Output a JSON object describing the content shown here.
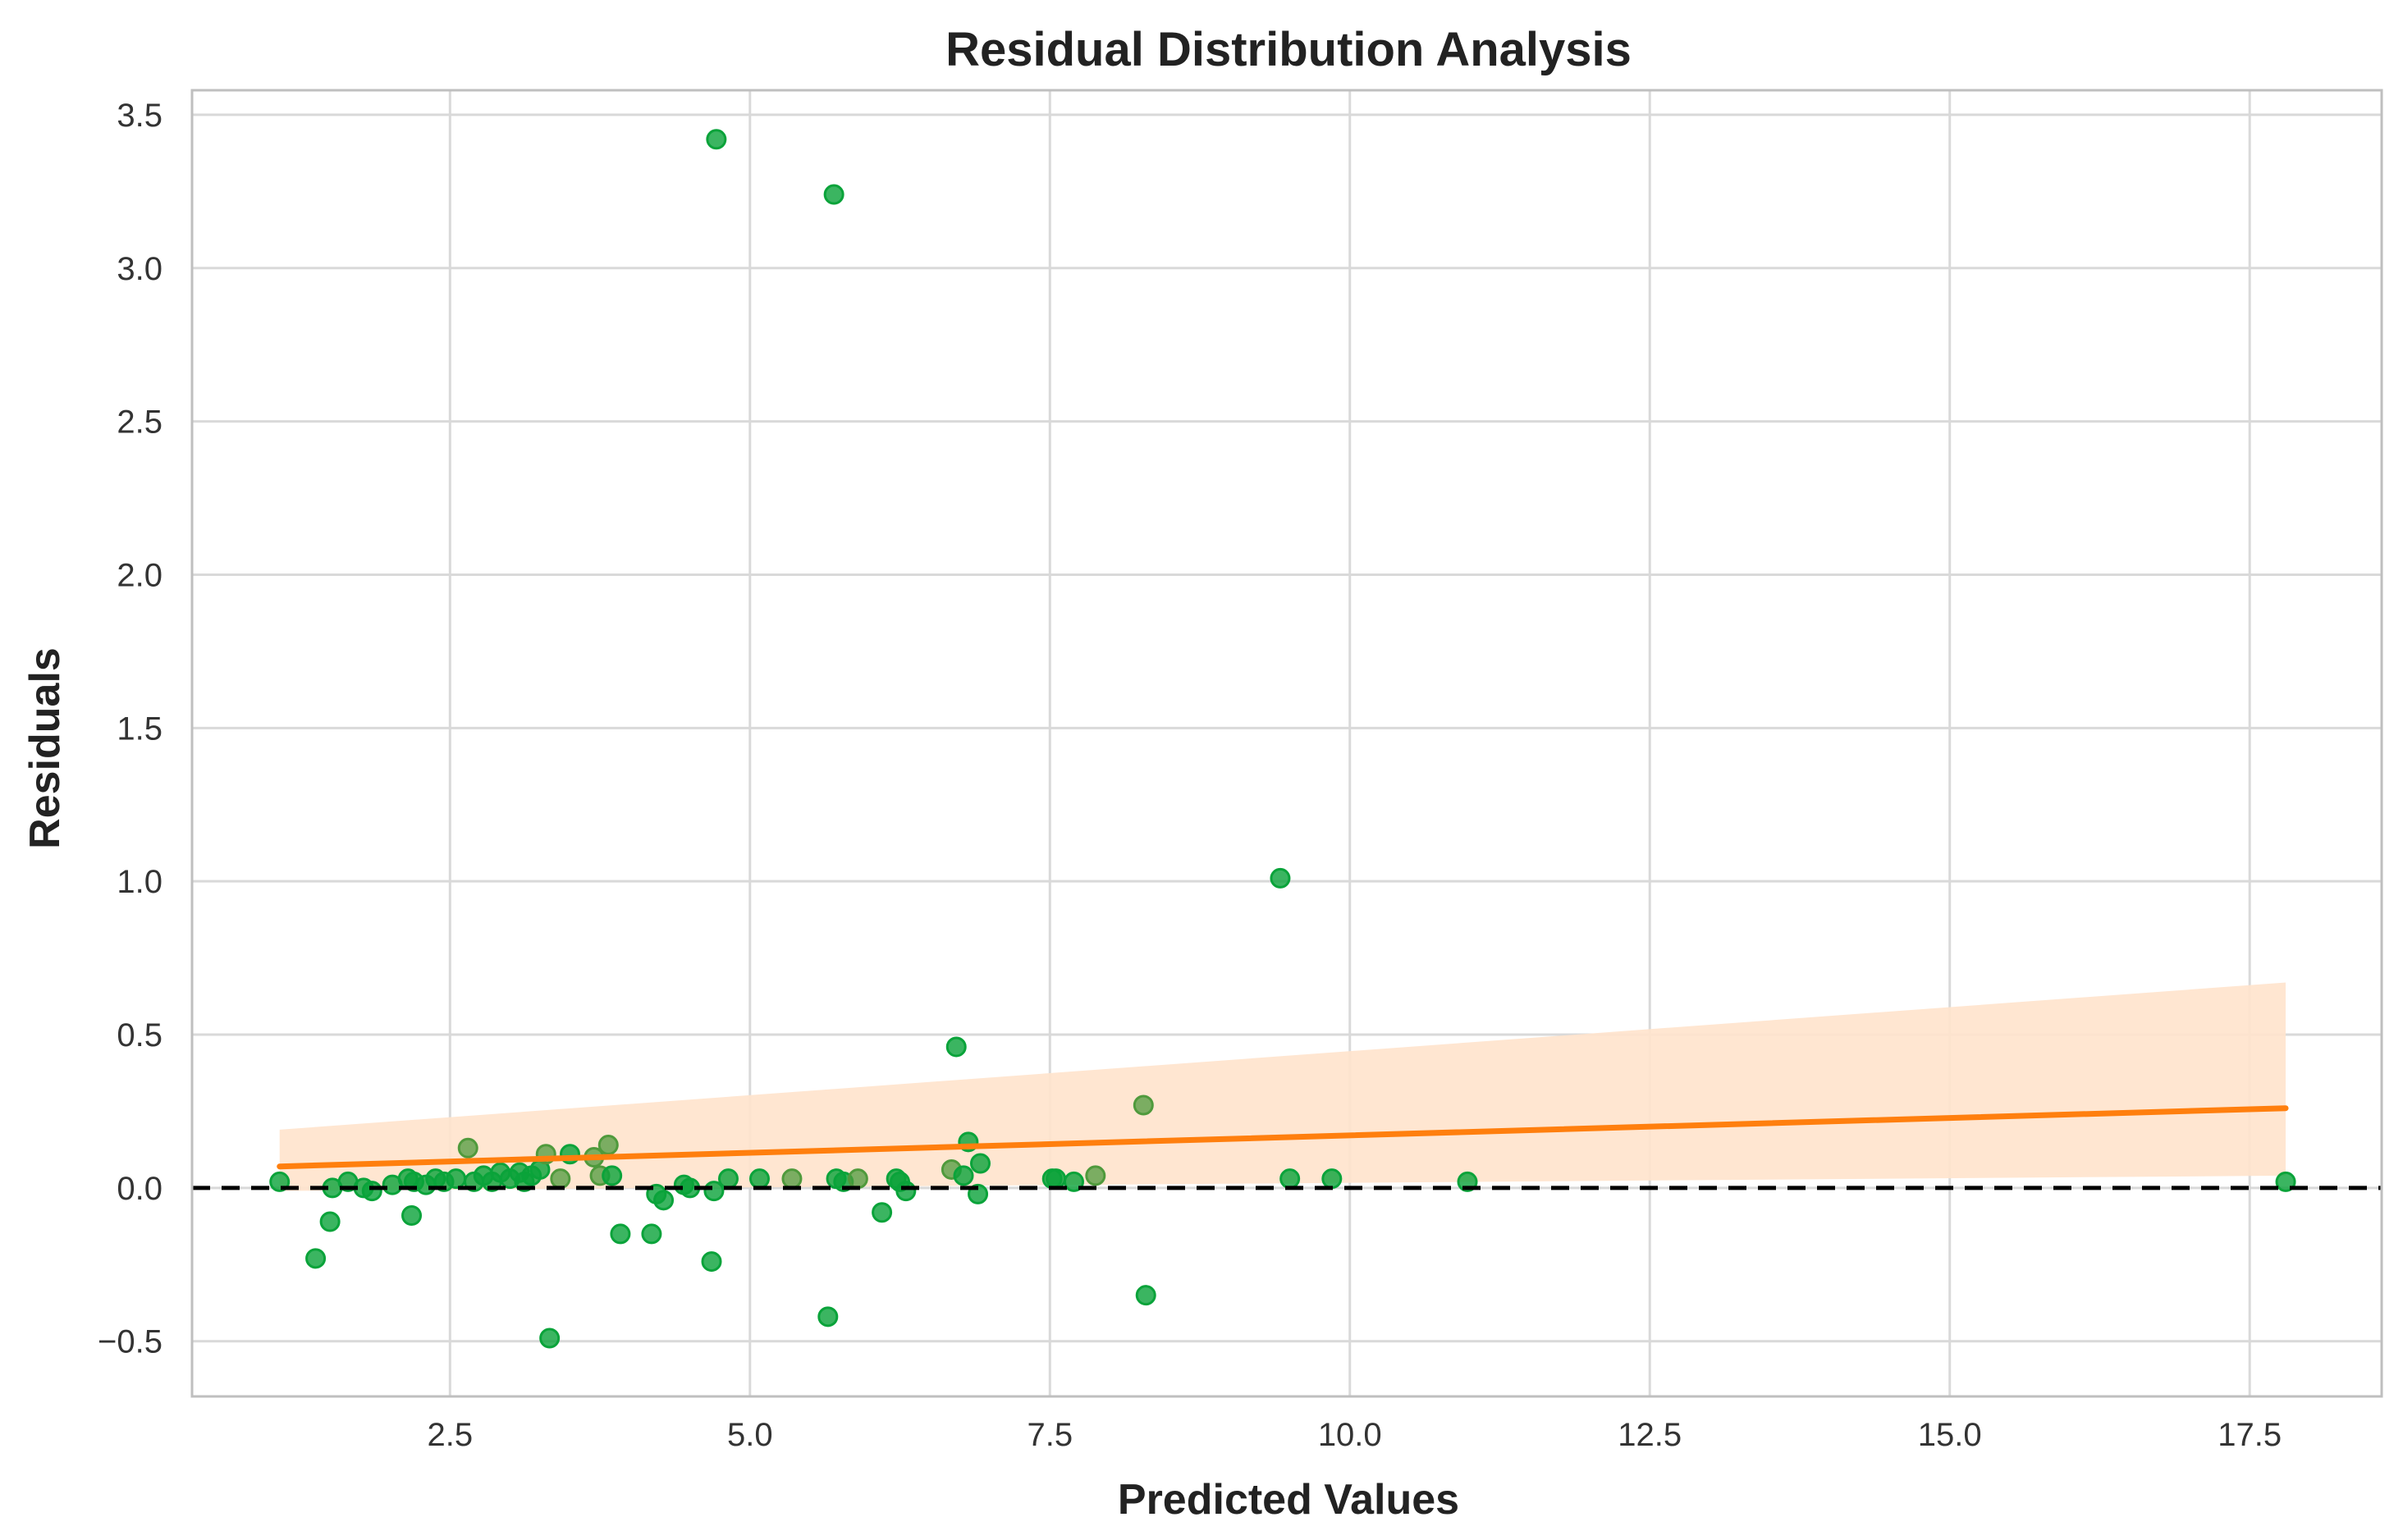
{
  "chart_data": {
    "type": "scatter",
    "title": "Residual Distribution Analysis",
    "xlabel": "Predicted Values",
    "ylabel": "Residuals",
    "xlim": [
      0.35,
      18.6
    ],
    "ylim": [
      -0.68,
      3.58
    ],
    "grid": true,
    "x_ticks": [
      2.5,
      5.0,
      7.5,
      10.0,
      12.5,
      15.0,
      17.5
    ],
    "x_tick_labels": [
      "2.5",
      "5.0",
      "7.5",
      "10.0",
      "12.5",
      "15.0",
      "17.5"
    ],
    "y_ticks": [
      -0.5,
      0.0,
      0.5,
      1.0,
      1.5,
      2.0,
      2.5,
      3.0,
      3.5
    ],
    "y_tick_labels": [
      "−0.5",
      "0.0",
      "0.5",
      "1.0",
      "1.5",
      "2.0",
      "2.5",
      "3.0",
      "3.5"
    ],
    "colors": {
      "point": "#0aa33a",
      "point_alt": "#4f9a3c",
      "trend": "#ff7f0e",
      "band": "#ffe3cc",
      "zero_line": "#000000",
      "grid": "#d9d9d9",
      "frame": "#bfbfbf"
    },
    "points": [
      {
        "x": 1.08,
        "y": 0.02,
        "alt": false
      },
      {
        "x": 1.38,
        "y": -0.23,
        "alt": false
      },
      {
        "x": 1.5,
        "y": -0.11,
        "alt": false
      },
      {
        "x": 1.52,
        "y": 0.0,
        "alt": false
      },
      {
        "x": 1.65,
        "y": 0.02,
        "alt": false
      },
      {
        "x": 1.78,
        "y": 0.0,
        "alt": false
      },
      {
        "x": 1.85,
        "y": -0.01,
        "alt": false
      },
      {
        "x": 2.02,
        "y": 0.01,
        "alt": false
      },
      {
        "x": 2.15,
        "y": 0.03,
        "alt": false
      },
      {
        "x": 2.18,
        "y": -0.09,
        "alt": false
      },
      {
        "x": 2.2,
        "y": 0.02,
        "alt": false
      },
      {
        "x": 2.3,
        "y": 0.01,
        "alt": false
      },
      {
        "x": 2.38,
        "y": 0.03,
        "alt": false
      },
      {
        "x": 2.45,
        "y": 0.02,
        "alt": false
      },
      {
        "x": 2.55,
        "y": 0.03,
        "alt": false
      },
      {
        "x": 2.65,
        "y": 0.13,
        "alt": true
      },
      {
        "x": 2.7,
        "y": 0.02,
        "alt": false
      },
      {
        "x": 2.78,
        "y": 0.04,
        "alt": false
      },
      {
        "x": 2.85,
        "y": 0.02,
        "alt": false
      },
      {
        "x": 2.92,
        "y": 0.05,
        "alt": false
      },
      {
        "x": 3.0,
        "y": 0.03,
        "alt": false
      },
      {
        "x": 3.08,
        "y": 0.05,
        "alt": false
      },
      {
        "x": 3.12,
        "y": 0.02,
        "alt": false
      },
      {
        "x": 3.18,
        "y": 0.04,
        "alt": false
      },
      {
        "x": 3.25,
        "y": 0.06,
        "alt": false
      },
      {
        "x": 3.3,
        "y": 0.11,
        "alt": true
      },
      {
        "x": 3.33,
        "y": -0.49,
        "alt": false
      },
      {
        "x": 3.42,
        "y": 0.03,
        "alt": true
      },
      {
        "x": 3.5,
        "y": 0.11,
        "alt": false
      },
      {
        "x": 3.7,
        "y": 0.1,
        "alt": true
      },
      {
        "x": 3.75,
        "y": 0.04,
        "alt": true
      },
      {
        "x": 3.82,
        "y": 0.14,
        "alt": true
      },
      {
        "x": 3.85,
        "y": 0.04,
        "alt": false
      },
      {
        "x": 3.92,
        "y": -0.15,
        "alt": false
      },
      {
        "x": 4.18,
        "y": -0.15,
        "alt": false
      },
      {
        "x": 4.22,
        "y": -0.02,
        "alt": false
      },
      {
        "x": 4.28,
        "y": -0.04,
        "alt": false
      },
      {
        "x": 4.45,
        "y": 0.01,
        "alt": false
      },
      {
        "x": 4.5,
        "y": 0.0,
        "alt": false
      },
      {
        "x": 4.68,
        "y": -0.24,
        "alt": false
      },
      {
        "x": 4.7,
        "y": -0.01,
        "alt": false
      },
      {
        "x": 4.72,
        "y": 3.42,
        "alt": false
      },
      {
        "x": 4.82,
        "y": 0.03,
        "alt": false
      },
      {
        "x": 5.08,
        "y": 0.03,
        "alt": false
      },
      {
        "x": 5.35,
        "y": 0.03,
        "alt": true
      },
      {
        "x": 5.65,
        "y": -0.42,
        "alt": false
      },
      {
        "x": 5.7,
        "y": 3.24,
        "alt": false
      },
      {
        "x": 5.72,
        "y": 0.03,
        "alt": false
      },
      {
        "x": 5.78,
        "y": 0.02,
        "alt": false
      },
      {
        "x": 5.9,
        "y": 0.03,
        "alt": true
      },
      {
        "x": 6.1,
        "y": -0.08,
        "alt": false
      },
      {
        "x": 6.22,
        "y": 0.03,
        "alt": false
      },
      {
        "x": 6.25,
        "y": 0.02,
        "alt": false
      },
      {
        "x": 6.3,
        "y": -0.01,
        "alt": false
      },
      {
        "x": 6.68,
        "y": 0.06,
        "alt": true
      },
      {
        "x": 6.72,
        "y": 0.46,
        "alt": false
      },
      {
        "x": 6.78,
        "y": 0.04,
        "alt": false
      },
      {
        "x": 6.82,
        "y": 0.15,
        "alt": false
      },
      {
        "x": 6.9,
        "y": -0.02,
        "alt": false
      },
      {
        "x": 6.92,
        "y": 0.08,
        "alt": false
      },
      {
        "x": 7.52,
        "y": 0.03,
        "alt": false
      },
      {
        "x": 7.55,
        "y": 0.03,
        "alt": false
      },
      {
        "x": 7.7,
        "y": 0.02,
        "alt": false
      },
      {
        "x": 7.88,
        "y": 0.04,
        "alt": true
      },
      {
        "x": 8.28,
        "y": 0.27,
        "alt": true
      },
      {
        "x": 8.3,
        "y": -0.35,
        "alt": false
      },
      {
        "x": 9.42,
        "y": 1.01,
        "alt": false
      },
      {
        "x": 9.5,
        "y": 0.03,
        "alt": false
      },
      {
        "x": 9.85,
        "y": 0.03,
        "alt": false
      },
      {
        "x": 10.98,
        "y": 0.02,
        "alt": false
      },
      {
        "x": 17.8,
        "y": 0.02,
        "alt": false
      }
    ],
    "trend": {
      "x": [
        1.08,
        17.8
      ],
      "y": [
        0.07,
        0.26
      ],
      "band_upper": [
        0.19,
        0.67
      ],
      "band_lower": [
        -0.01,
        0.04
      ]
    },
    "reference_line": {
      "y": 0.0,
      "style": "dashed"
    }
  }
}
